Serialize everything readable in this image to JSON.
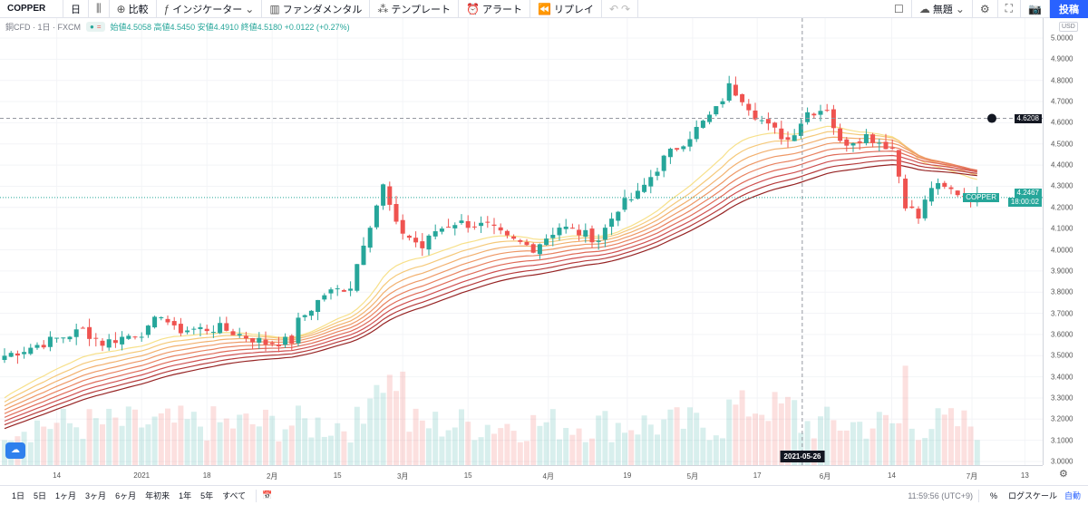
{
  "toolbar": {
    "symbol": "COPPER",
    "interval": "日",
    "compare": "比較",
    "indicators": "インジケーター",
    "fundamentals": "ファンダメンタル",
    "templates": "テンプレート",
    "alert": "アラート",
    "replay": "リプレイ",
    "layout_name": "無題",
    "publish": "投稿"
  },
  "legend": {
    "title": "銅CFD · 1日 · FXCM",
    "values": "始値4.5058 高値4.5450 安値4.4910 終値4.5180 +0.0122 (+0.27%)"
  },
  "price_axis": {
    "currency": "USD",
    "ticks": [
      "5.0000",
      "4.9000",
      "4.8000",
      "4.7000",
      "4.6000",
      "4.5000",
      "4.4000",
      "4.3000",
      "4.2000",
      "4.1000",
      "4.0000",
      "3.9000",
      "3.8000",
      "3.7000",
      "3.6000",
      "3.5000",
      "3.4000",
      "3.3000",
      "3.2000",
      "3.1000",
      "3.0000"
    ],
    "crosshair_price": "4.6208",
    "last_symbol": "COPPER",
    "last_price": "4.2467",
    "countdown": "18:00:02"
  },
  "time_axis": {
    "labels": [
      {
        "text": "14",
        "day": 8
      },
      {
        "text": "2021",
        "day": 21
      },
      {
        "text": "18",
        "day": 31
      },
      {
        "text": "2月",
        "day": 41
      },
      {
        "text": "15",
        "day": 51
      },
      {
        "text": "3月",
        "day": 61
      },
      {
        "text": "15",
        "day": 71
      },
      {
        "text": "4月",
        "day": 83.3
      },
      {
        "text": "19",
        "day": 95.4
      },
      {
        "text": "5月",
        "day": 105.4
      },
      {
        "text": "17",
        "day": 115.3
      },
      {
        "text": "6月",
        "day": 125.7
      },
      {
        "text": "14",
        "day": 135.9
      },
      {
        "text": "7月",
        "day": 148.2
      },
      {
        "text": "13",
        "day": 156.3
      }
    ],
    "crosshair_date": "2021-05-26"
  },
  "bottom_bar": {
    "ranges": [
      "1日",
      "5日",
      "1ヶ月",
      "3ヶ月",
      "6ヶ月",
      "年初来",
      "1年",
      "5年",
      "すべて"
    ],
    "clock": "11:59:56 (UTC+9)",
    "percent": "%",
    "log": "ログスケール",
    "auto": "自動"
  },
  "colors": {
    "up": "#26a69a",
    "down": "#ef5350",
    "accent": "#2962ff"
  },
  "chart_data": {
    "type": "candlestick",
    "ylim": [
      3.0,
      5.0
    ],
    "crosshair_day": 122.2,
    "keypoints": [
      [
        0,
        3.5
      ],
      [
        6,
        3.56
      ],
      [
        12,
        3.62
      ],
      [
        15,
        3.56
      ],
      [
        22,
        3.62
      ],
      [
        24,
        3.7
      ],
      [
        26,
        3.62
      ],
      [
        33,
        3.63
      ],
      [
        40,
        3.56
      ],
      [
        44,
        3.57
      ],
      [
        45,
        3.66
      ],
      [
        49,
        3.79
      ],
      [
        53,
        3.83
      ],
      [
        55,
        4.04
      ],
      [
        58,
        4.3
      ],
      [
        60,
        4.11
      ],
      [
        64,
        4.01
      ],
      [
        66,
        4.09
      ],
      [
        69,
        4.13
      ],
      [
        74,
        4.11
      ],
      [
        77,
        4.05
      ],
      [
        81,
        4.01
      ],
      [
        85,
        4.11
      ],
      [
        91,
        4.05
      ],
      [
        94,
        4.2
      ],
      [
        97,
        4.26
      ],
      [
        101,
        4.43
      ],
      [
        105,
        4.54
      ],
      [
        109,
        4.66
      ],
      [
        111,
        4.77
      ],
      [
        113,
        4.72
      ],
      [
        115,
        4.64
      ],
      [
        117,
        4.58
      ],
      [
        120,
        4.52
      ],
      [
        123,
        4.65
      ],
      [
        126,
        4.67
      ],
      [
        128,
        4.5
      ],
      [
        132,
        4.54
      ],
      [
        136,
        4.48
      ],
      [
        138,
        4.22
      ],
      [
        140,
        4.15
      ],
      [
        142,
        4.3
      ],
      [
        145,
        4.28
      ],
      [
        149,
        4.24
      ]
    ],
    "ribbon_periods": [
      20,
      25,
      30,
      35,
      40,
      45,
      50,
      55,
      60
    ],
    "ribbon_colors": [
      "#f7e08a",
      "#f5c97a",
      "#f2b06e",
      "#ee9866",
      "#e98260",
      "#df6a58",
      "#cf5050",
      "#b63a3a",
      "#962424"
    ]
  }
}
